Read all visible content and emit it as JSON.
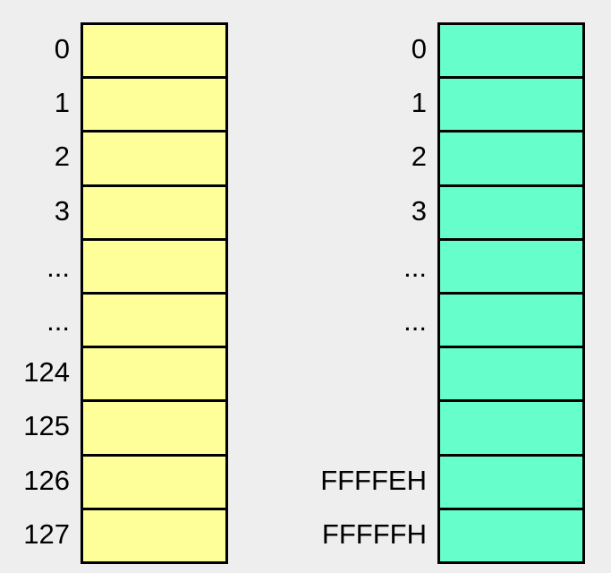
{
  "left_memory": {
    "fill_color": "#ffff99",
    "labels": [
      "0",
      "1",
      "2",
      "3",
      "...",
      "...",
      "124",
      "125",
      "126",
      "127"
    ]
  },
  "right_memory": {
    "fill_color": "#66ffcc",
    "labels": [
      "0",
      "1",
      "2",
      "3",
      "...",
      "...",
      "",
      "",
      "FFFFEH",
      "FFFFFH"
    ]
  }
}
